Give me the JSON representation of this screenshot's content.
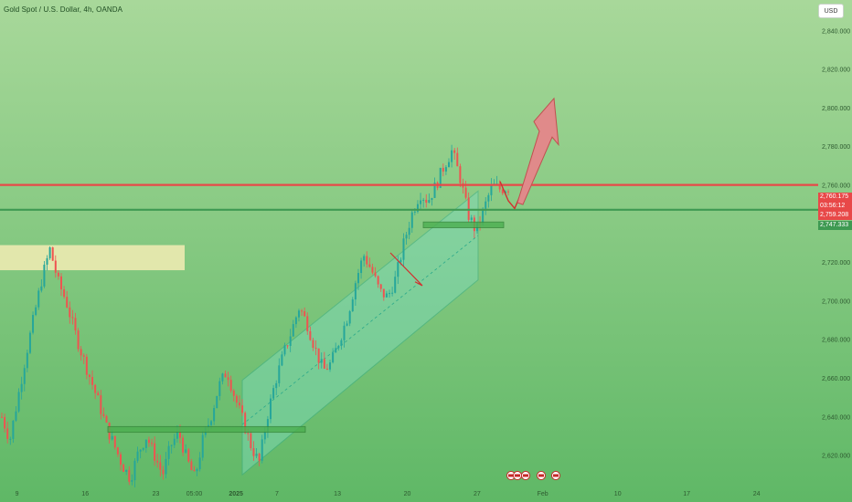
{
  "header": {
    "symbol_title": "Gold Spot / U.S. Dollar, 4h, OANDA",
    "currency_button": "USD"
  },
  "price_tags": {
    "resistance": "2,760.175",
    "countdown": "03:56:12",
    "last_price": "2,759.208",
    "support": "2,747.333"
  },
  "colors": {
    "background_top": "#a8d89a",
    "background_bottom": "#5fb866",
    "bull_candle": "#26a69a",
    "bear_candle": "#ef5350",
    "resistance_line": "#e84848",
    "support_line": "#3e9a52",
    "channel_fill": "#7fdcc0",
    "zone_fill": "#f3ecb4",
    "forecast_arrow": "#e08a8a"
  },
  "chart_data": {
    "type": "candlestick",
    "title": "Gold Spot / U.S. Dollar, 4h, OANDA",
    "y_ticks": [
      2840,
      2820,
      2800,
      2780,
      2760,
      2740,
      2720,
      2700,
      2680,
      2660,
      2640,
      2620
    ],
    "y_tick_labels": [
      "2,840.000",
      "2,820.000",
      "2,800.000",
      "2,780.000",
      "2,760.000",
      "2,740.000",
      "2,720.000",
      "2,700.000",
      "2,680.000",
      "2,660.000",
      "2,640.000",
      "2,620.000"
    ],
    "ylim": [
      2603,
      2856
    ],
    "x_tick_labels": [
      "9",
      "16",
      "23",
      "05:00",
      "2025",
      "7",
      "13",
      "20",
      "27",
      "Feb",
      "10",
      "17",
      "24"
    ],
    "close_path": [
      2640,
      2628,
      2650,
      2672,
      2692,
      2712,
      2727,
      2710,
      2700,
      2685,
      2672,
      2660,
      2648,
      2635,
      2625,
      2615,
      2608,
      2622,
      2630,
      2620,
      2610,
      2625,
      2632,
      2618,
      2608,
      2628,
      2640,
      2656,
      2664,
      2650,
      2638,
      2625,
      2616,
      2640,
      2658,
      2672,
      2684,
      2697,
      2688,
      2675,
      2664,
      2668,
      2680,
      2692,
      2710,
      2724,
      2716,
      2705,
      2702,
      2712,
      2730,
      2745,
      2756,
      2752,
      2760,
      2770,
      2778,
      2764,
      2745,
      2736,
      2748,
      2760,
      2758,
      2759
    ],
    "resistance_level": 2760.175,
    "support_level": 2747.333,
    "last_price": 2759.208,
    "forecast_target": 2805
  }
}
